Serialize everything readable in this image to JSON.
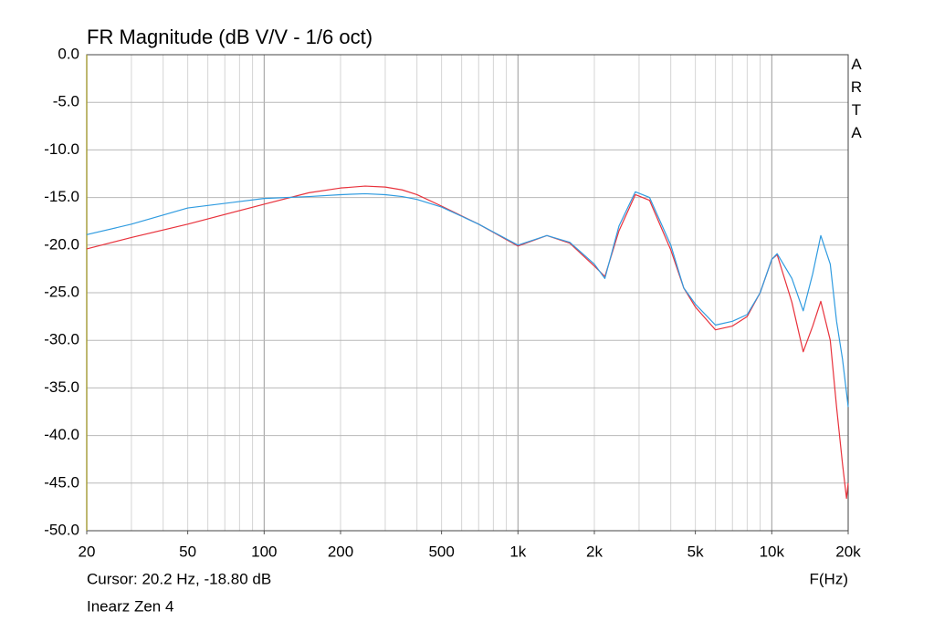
{
  "chart_data": {
    "type": "line",
    "title": "FR Magnitude (dB V/V - 1/6 oct)",
    "side_label": "ARTA",
    "cursor_text": "Cursor: 20.2 Hz, -18.80 dB",
    "footer": "Inearz Zen 4",
    "xlabel": "F(Hz)",
    "xscale": "log",
    "grid": true,
    "x": [
      20,
      30,
      50,
      100,
      150,
      200,
      250,
      300,
      350,
      400,
      500,
      700,
      1000,
      1300,
      1600,
      2000,
      2200,
      2500,
      2900,
      3300,
      4000,
      4500,
      5000,
      6000,
      7000,
      8000,
      9000,
      10000,
      10500,
      12000,
      13300,
      14500,
      15600,
      17000,
      18000,
      19000,
      19700,
      20000
    ],
    "series": [
      {
        "color": "#e8323c",
        "values": [
          -20.4,
          -19.2,
          -17.8,
          -15.7,
          -14.5,
          -14.0,
          -13.8,
          -13.9,
          -14.2,
          -14.7,
          -15.9,
          -17.8,
          -20.1,
          -19.0,
          -19.8,
          -22.2,
          -23.3,
          -18.5,
          -14.7,
          -15.3,
          -20.5,
          -24.5,
          -26.5,
          -28.9,
          -28.5,
          -27.5,
          -25.0,
          -21.5,
          -21.0,
          -26.0,
          -31.2,
          -28.5,
          -25.9,
          -30.0,
          -37.0,
          -43.0,
          -46.6,
          -45.0
        ]
      },
      {
        "color": "#2f9be0",
        "values": [
          -18.9,
          -17.8,
          -16.1,
          -15.1,
          -14.9,
          -14.7,
          -14.6,
          -14.7,
          -14.9,
          -15.2,
          -16.0,
          -17.8,
          -20.0,
          -19.0,
          -19.7,
          -22.0,
          -23.5,
          -18.0,
          -14.4,
          -15.0,
          -20.0,
          -24.5,
          -26.2,
          -28.4,
          -28.0,
          -27.3,
          -25.0,
          -21.5,
          -20.9,
          -23.5,
          -26.9,
          -23.0,
          -19.0,
          -22.0,
          -28.0,
          -32.0,
          -35.5,
          -37.0
        ]
      }
    ],
    "xlim": [
      20,
      20000
    ],
    "xticks": [
      20,
      50,
      100,
      200,
      500,
      {
        "value": 1000,
        "label": "1k"
      },
      {
        "value": 2000,
        "label": "2k"
      },
      {
        "value": 5000,
        "label": "5k"
      },
      {
        "value": 10000,
        "label": "10k"
      },
      {
        "value": 20000,
        "label": "20k"
      }
    ],
    "xgrid": [
      20,
      30,
      40,
      50,
      60,
      70,
      80,
      90,
      100,
      200,
      300,
      400,
      500,
      600,
      700,
      800,
      900,
      1000,
      2000,
      3000,
      4000,
      5000,
      6000,
      7000,
      8000,
      9000,
      10000,
      20000
    ],
    "ylim": [
      -50,
      0
    ],
    "yticks": [
      {
        "value": 0,
        "label": "0.0"
      },
      {
        "value": -5,
        "label": "-5.0"
      },
      {
        "value": -10,
        "label": "-10.0"
      },
      {
        "value": -15,
        "label": "-15.0"
      },
      {
        "value": -20,
        "label": "-20.0"
      },
      {
        "value": -25,
        "label": "-25.0"
      },
      {
        "value": -30,
        "label": "-30.0"
      },
      {
        "value": -35,
        "label": "-35.0"
      },
      {
        "value": -40,
        "label": "-40.0"
      },
      {
        "value": -45,
        "label": "-45.0"
      },
      {
        "value": -50,
        "label": "-50.0"
      }
    ]
  }
}
